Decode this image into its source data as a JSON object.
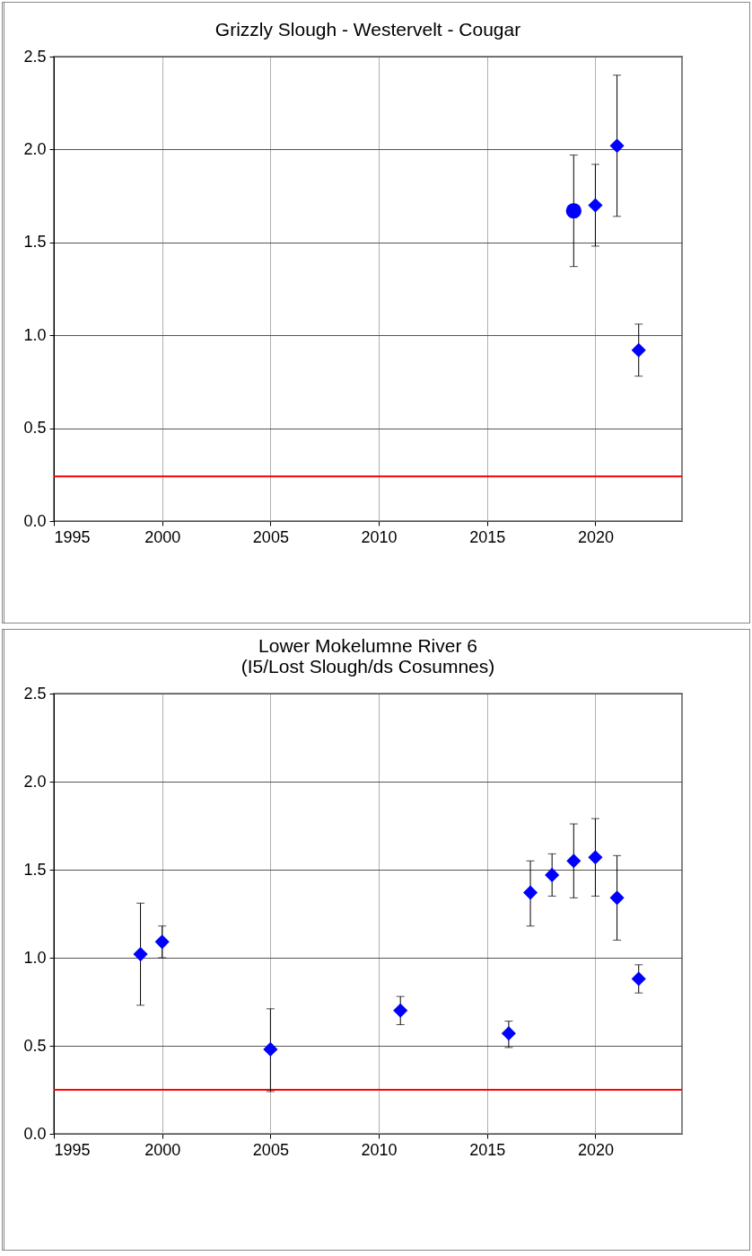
{
  "chart_data": [
    {
      "type": "scatter",
      "title": "Grizzly Slough - Westervelt - Cougar",
      "xlim": [
        1995,
        2024
      ],
      "xticks": [
        1995,
        2000,
        2005,
        2010,
        2015,
        2020
      ],
      "ylim": [
        0,
        2.5
      ],
      "yticks": [
        {
          "value": 0,
          "label": "0.0"
        },
        0.5,
        {
          "value": 1,
          "label": "1.0"
        },
        1.5,
        {
          "value": 2,
          "label": "2.0"
        },
        2.5
      ],
      "grid": true,
      "series": [
        {
          "color": "#0000ff",
          "marker": "circle",
          "x": [
            2019
          ],
          "values": [
            1.67
          ],
          "errors": [
            [
              1.37,
              1.97
            ]
          ]
        },
        {
          "color": "#0000ff",
          "marker": "diamond",
          "x": [
            2020,
            2021,
            2022
          ],
          "values": [
            1.7,
            2.02,
            0.92
          ],
          "errors": [
            [
              1.48,
              1.92
            ],
            [
              1.64,
              2.4
            ],
            [
              0.78,
              1.06
            ]
          ]
        }
      ],
      "ref_lines": [
        {
          "axis": "y",
          "value": 0.24,
          "color": "#ff0000"
        }
      ]
    },
    {
      "type": "scatter",
      "title": "Lower Mokelumne River 6",
      "subtitle": "(I5/Lost Slough/ds Cosumnes)",
      "xlim": [
        1995,
        2024
      ],
      "xticks": [
        1995,
        2000,
        2005,
        2010,
        2015,
        2020
      ],
      "ylim": [
        0,
        2.5
      ],
      "yticks": [
        {
          "value": 0,
          "label": "0.0"
        },
        0.5,
        {
          "value": 1,
          "label": "1.0"
        },
        1.5,
        {
          "value": 2,
          "label": "2.0"
        },
        2.5
      ],
      "grid": true,
      "series": [
        {
          "color": "#0000ff",
          "marker": "diamond",
          "x": [
            1999,
            2005,
            2016,
            2017,
            2019
          ],
          "values": [
            1.02,
            0.48,
            0.57,
            1.37,
            1.55
          ],
          "errors": [
            [
              0.73,
              1.31
            ],
            [
              0.24,
              0.71
            ],
            [
              0.49,
              0.64
            ],
            [
              1.18,
              1.55
            ],
            [
              1.34,
              1.76
            ]
          ]
        },
        {
          "color": "#0000ff",
          "marker": "diamond",
          "x": [
            2000,
            2011,
            2018,
            2020,
            2021,
            2022
          ],
          "values": [
            1.09,
            0.7,
            1.47,
            1.57,
            1.34,
            0.88
          ],
          "errors": [
            [
              1.0,
              1.18
            ],
            [
              0.62,
              0.78
            ],
            [
              1.35,
              1.59
            ],
            [
              1.35,
              1.79
            ],
            [
              1.1,
              1.58
            ],
            [
              0.8,
              0.96
            ]
          ]
        }
      ],
      "ref_lines": [
        {
          "axis": "y",
          "value": 0.25,
          "color": "#ff0000"
        }
      ]
    }
  ]
}
